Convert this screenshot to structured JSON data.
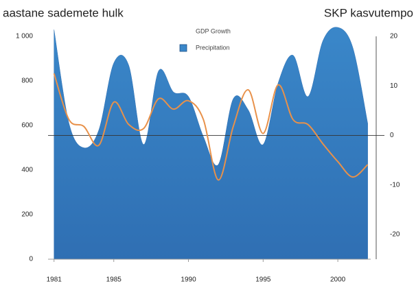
{
  "chart_data": {
    "type": "combo",
    "y_label": "aastane sademete hulk",
    "y2_label": "SKP kasvutempo",
    "x": [
      1981,
      1982,
      1983,
      1984,
      1985,
      1986,
      1987,
      1988,
      1989,
      1990,
      1991,
      1992,
      1993,
      1994,
      1995,
      1996,
      1997,
      1998,
      1999,
      2000,
      2001,
      2002
    ],
    "series": [
      {
        "name": "Precipitation",
        "type": "area",
        "color": "#3a87c9",
        "axis": "y",
        "values": [
          1030,
          610,
          500,
          580,
          880,
          870,
          515,
          845,
          750,
          730,
          550,
          425,
          720,
          670,
          515,
          790,
          915,
          730,
          980,
          1040,
          950,
          610
        ]
      },
      {
        "name": "GDP Growth",
        "type": "line",
        "color": "#e8914a",
        "axis": "y2",
        "values": [
          12.5,
          3.2,
          1.8,
          -2,
          6.7,
          2.2,
          1.4,
          7.4,
          5.3,
          7,
          3.2,
          -9,
          1.8,
          9.2,
          0.4,
          10.2,
          3.2,
          2.2,
          -1.7,
          -5.3,
          -8.4,
          -5.9
        ]
      }
    ],
    "xlim": [
      1980.6,
      2002.2
    ],
    "xticks": [
      1981,
      1985,
      1990,
      1995,
      2000
    ],
    "ylim": [
      0,
      1000
    ],
    "yticks": [
      0,
      200,
      400,
      600,
      800,
      {
        "value": 1000,
        "label": "1 000"
      }
    ],
    "y2lim": [
      -25,
      20
    ],
    "y2ticks": [
      -20,
      -10,
      0,
      10,
      20
    ],
    "y2_zero_line": true
  }
}
